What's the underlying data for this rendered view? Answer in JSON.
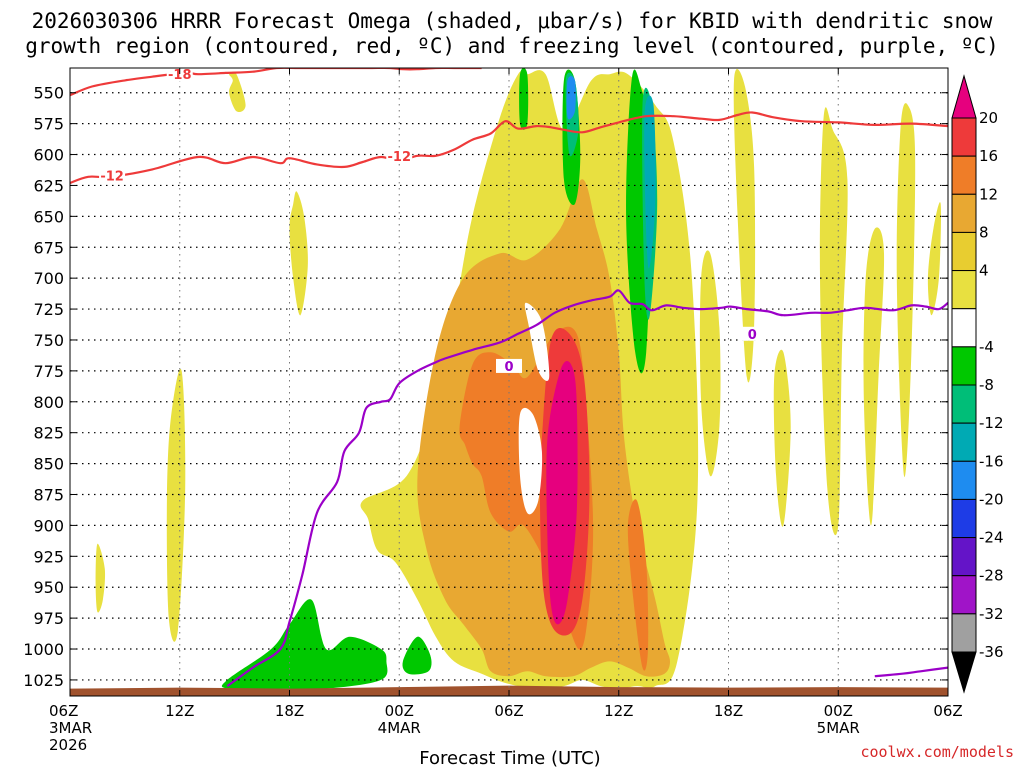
{
  "chart_data": {
    "type": "time-height contour plot",
    "title_lines": [
      "2026030306 HRRR Forecast Omega (shaded, μbar/s) for KBID with dendritic snow",
      "growth region (contoured, red, ºC) and freezing level (contoured, purple, ºC)"
    ],
    "xlabel": "Forecast Time (UTC)",
    "credit": "coolwx.com/models",
    "x_ticks": [
      {
        "hour": 0,
        "lines": [
          "06Z",
          "3MAR",
          "2026"
        ]
      },
      {
        "hour": 6,
        "lines": [
          "12Z"
        ]
      },
      {
        "hour": 12,
        "lines": [
          "18Z"
        ]
      },
      {
        "hour": 18,
        "lines": [
          "00Z",
          "4MAR"
        ]
      },
      {
        "hour": 24,
        "lines": [
          "06Z"
        ]
      },
      {
        "hour": 30,
        "lines": [
          "12Z"
        ]
      },
      {
        "hour": 36,
        "lines": [
          "18Z"
        ]
      },
      {
        "hour": 42,
        "lines": [
          "00Z",
          "5MAR"
        ]
      },
      {
        "hour": 48,
        "lines": [
          "06Z"
        ]
      }
    ],
    "xlim_hours": [
      0,
      48
    ],
    "y_ticks": [
      "550",
      "575",
      "600",
      "625",
      "650",
      "675",
      "700",
      "725",
      "750",
      "775",
      "800",
      "825",
      "850",
      "875",
      "900",
      "925",
      "950",
      "975",
      "1000",
      "1025"
    ],
    "ylim_hpa": [
      530,
      1038
    ],
    "colorbar": {
      "tick_labels": [
        "20",
        "16",
        "12",
        "8",
        "4",
        "-4",
        "-8",
        "-12",
        "-16",
        "-20",
        "-24",
        "-28",
        "-32",
        "-36"
      ],
      "colors": [
        "#e6007e",
        "#ee3a3a",
        "#ef7d28",
        "#e8a832",
        "#e8cd30",
        "#e8e040",
        "#ffffff",
        "#00c800",
        "#00be78",
        "#00aab4",
        "#1e8cf0",
        "#1e3ce6",
        "#6414c8",
        "#a014c8",
        "#a0a0a0",
        "#000000"
      ]
    },
    "omega_regions": [
      {
        "level": "4",
        "color": "#e8e040",
        "t": [
          12.4,
          12.8,
          13.0,
          12.6,
          12.2,
          12.0,
          12.2
        ],
        "p": [
          630,
          650,
          690,
          730,
          700,
          660,
          640
        ]
      },
      {
        "level": "4",
        "color": "#e8e040",
        "t": [
          1.5,
          1.9,
          1.8,
          1.5,
          1.4
        ],
        "p": [
          915,
          935,
          960,
          970,
          945
        ]
      },
      {
        "level": "4",
        "color": "#e8e040",
        "t": [
          5.5,
          6.1,
          6.3,
          5.9,
          5.4,
          5.3
        ],
        "p": [
          815,
          775,
          870,
          985,
          975,
          880
        ]
      },
      {
        "level": "4",
        "color": "#e8e040",
        "t": [
          8.7,
          9.1,
          9.6,
          9.1,
          8.7,
          8.9
        ],
        "p": [
          535,
          535,
          560,
          565,
          550,
          540
        ]
      },
      {
        "level": "4",
        "color": "#e8e040",
        "t": [
          16.0,
          18.4,
          20.0,
          21.0,
          22.0,
          23.5,
          24.5,
          25.0,
          26.0,
          27.0,
          28.5,
          29.5,
          30.5,
          32.0,
          33.0,
          34.0,
          34.3,
          33.2,
          32.0,
          31.0,
          30.0,
          29.0,
          28.0,
          27.0,
          25.5,
          24.5,
          23.5,
          22.5,
          21.0,
          20.0,
          19.0,
          17.8,
          16.8,
          16.3
        ],
        "p": [
          880,
          860,
          800,
          730,
          650,
          570,
          535,
          535,
          535,
          580,
          540,
          535,
          535,
          560,
          590,
          700,
          880,
          1010,
          1030,
          1030,
          1032,
          1030,
          1025,
          1030,
          1032,
          1030,
          1026,
          1020,
          1010,
          990,
          960,
          930,
          920,
          895
        ]
      },
      {
        "level": "4",
        "color": "#e8e040",
        "t": [
          34.5,
          35.0,
          35.5,
          35.5,
          35.0,
          34.5
        ],
        "p": [
          700,
          680,
          740,
          820,
          860,
          800
        ]
      },
      {
        "level": "4",
        "color": "#e8e040",
        "t": [
          36.3,
          36.9,
          37.4,
          37.4,
          37.0,
          36.5
        ],
        "p": [
          540,
          545,
          610,
          740,
          780,
          650
        ]
      },
      {
        "level": "4",
        "color": "#e8e040",
        "t": [
          38.5,
          39.0,
          39.4,
          39.0,
          38.6
        ],
        "p": [
          780,
          760,
          820,
          900,
          860
        ]
      },
      {
        "level": "4",
        "color": "#e8e040",
        "t": [
          41.2,
          41.7,
          42.5,
          42.2,
          42.0,
          41.4,
          41.0
        ],
        "p": [
          570,
          580,
          620,
          760,
          900,
          870,
          700
        ]
      },
      {
        "level": "4",
        "color": "#e8e040",
        "t": [
          43.5,
          44.0,
          44.5,
          44.2,
          43.8,
          43.4
        ],
        "p": [
          700,
          660,
          680,
          780,
          900,
          800
        ]
      },
      {
        "level": "4",
        "color": "#e8e040",
        "t": [
          45.4,
          45.8,
          46.2,
          46.0,
          45.6,
          45.2
        ],
        "p": [
          580,
          560,
          600,
          760,
          860,
          700
        ]
      },
      {
        "level": "4",
        "color": "#e8e040",
        "t": [
          47.2,
          47.6,
          47.5,
          47.1,
          46.9
        ],
        "p": [
          660,
          640,
          700,
          730,
          700
        ]
      },
      {
        "level": "8",
        "color": "#e8a832",
        "t": [
          19.0,
          20.0,
          21.5,
          23.5,
          25.0,
          26.8,
          28.0,
          28.8,
          29.5,
          30.0,
          30.3,
          31.0,
          32.0,
          32.5,
          32.8,
          32.5,
          31.5,
          30.5,
          29.5,
          28.5,
          27.5,
          26.0,
          25.0,
          24.0,
          23.0,
          22.5,
          21.5,
          20.5,
          19.5
        ],
        "p": [
          860,
          760,
          700,
          680,
          685,
          660,
          620,
          660,
          700,
          760,
          830,
          900,
          960,
          995,
          1010,
          1020,
          1022,
          1015,
          1010,
          1015,
          1022,
          1022,
          1018,
          1022,
          1018,
          1000,
          980,
          960,
          920
        ]
      },
      {
        "level": "12",
        "color": "#ef7d28",
        "t": [
          21.3,
          22.0,
          23.0,
          24.2,
          25.0,
          26.5,
          27.7,
          28.2,
          28.6,
          28.3,
          27.8,
          26.8,
          26.0,
          24.8,
          24.0,
          23.0,
          22.5,
          22.0,
          21.6
        ],
        "p": [
          820,
          770,
          760,
          770,
          780,
          745,
          745,
          800,
          900,
          975,
          1000,
          960,
          930,
          900,
          905,
          890,
          860,
          850,
          835
        ]
      },
      {
        "level": "12",
        "color": "#ef7d28",
        "t": [
          30.5,
          31.0,
          31.5,
          31.6,
          31.3,
          30.8
        ],
        "p": [
          900,
          880,
          930,
          1000,
          1015,
          960
        ]
      },
      {
        "level": "16",
        "color": "#ee3a3a",
        "t": [
          25.8,
          26.3,
          27.3,
          28.1,
          28.4,
          28.1,
          27.5,
          26.5,
          25.9,
          25.7
        ],
        "p": [
          830,
          750,
          745,
          780,
          870,
          950,
          985,
          985,
          955,
          890
        ]
      },
      {
        "level": "20",
        "color": "#e6007e",
        "t": [
          26.1,
          26.8,
          27.4,
          27.7,
          27.7,
          27.2,
          26.7,
          26.3,
          26.1
        ],
        "p": [
          830,
          775,
          770,
          800,
          890,
          960,
          980,
          965,
          910
        ]
      },
      {
        "level": "0",
        "color": "#ffffff",
        "t": [
          24.9,
          25.8,
          26.2,
          25.6,
          25.1
        ],
        "p": [
          720,
          735,
          780,
          775,
          740
        ]
      },
      {
        "level": "0",
        "color": "#ffffff",
        "t": [
          24.6,
          25.3,
          25.8,
          25.6,
          25.0,
          24.6
        ],
        "p": [
          810,
          810,
          840,
          880,
          890,
          860
        ]
      },
      {
        "level": "-4",
        "color": "#00c800",
        "t": [
          27.0,
          27.6,
          27.9,
          27.6,
          27.0
        ],
        "p": [
          540,
          540,
          600,
          640,
          620
        ]
      },
      {
        "level": "-4",
        "color": "#00c800",
        "t": [
          30.7,
          31.2,
          31.8,
          31.5,
          30.9,
          30.4
        ],
        "p": [
          540,
          545,
          600,
          760,
          760,
          650
        ]
      },
      {
        "level": "-4",
        "color": "#00c800",
        "t": [
          24.6,
          25.0,
          25.0,
          24.6
        ],
        "p": [
          535,
          535,
          575,
          575
        ]
      },
      {
        "level": "-4",
        "color": "#00c800",
        "t": [
          8.6,
          11.0,
          12.0,
          13.2,
          14.0,
          15.3,
          17.0,
          17.3,
          17.0,
          14.0,
          11.0,
          8.6
        ],
        "p": [
          1025,
          1000,
          980,
          960,
          1000,
          990,
          1000,
          1010,
          1025,
          1032,
          1032,
          1032
        ]
      },
      {
        "level": "-4",
        "color": "#00c800",
        "t": [
          18.2,
          19.0,
          19.7,
          19.6,
          18.5
        ],
        "p": [
          1010,
          990,
          1005,
          1018,
          1020
        ]
      },
      {
        "level": "-8",
        "color": "#00be78",
        "t": [
          31.3,
          31.8,
          32.1,
          31.7,
          31.4
        ],
        "p": [
          560,
          560,
          640,
          730,
          700
        ]
      },
      {
        "level": "-12",
        "color": "#00aab4",
        "t": [
          31.4,
          31.9,
          32.0,
          31.6
        ],
        "p": [
          570,
          560,
          640,
          690
        ]
      },
      {
        "level": "-8",
        "color": "#00be78",
        "t": [
          27.1,
          27.6,
          27.8,
          27.3
        ],
        "p": [
          540,
          540,
          580,
          600
        ]
      },
      {
        "level": "-16",
        "color": "#1e8cf0",
        "t": [
          27.2,
          27.6,
          27.6,
          27.2
        ],
        "p": [
          540,
          540,
          565,
          570
        ]
      }
    ],
    "dgz_contours": [
      {
        "label": "-18",
        "t": [
          0.0,
          1.2,
          3.0,
          4.5,
          6.3,
          7.0,
          8.5,
          10.0,
          11.3,
          12.5,
          14.0,
          15.5,
          16.5,
          17.5,
          18.2,
          19.0,
          20.0,
          21.0,
          22.0,
          22.5
        ],
        "p": [
          552,
          545,
          540,
          537,
          534,
          535,
          534,
          533,
          530,
          530,
          530,
          530,
          530,
          530,
          531,
          531,
          530,
          530,
          530,
          530
        ]
      },
      {
        "label": "-12",
        "t": [
          0.0,
          1.0,
          2.2,
          4.5,
          7.0,
          8.5,
          10.0,
          11.5,
          12.0,
          13.5,
          15.0,
          16.0,
          17.0,
          18.0,
          19.0,
          20.0,
          21.0,
          22.0,
          23.0,
          23.8,
          24.5,
          25.5,
          26.3,
          27.0,
          28.0,
          29.0,
          30.0,
          31.5,
          33.0,
          34.5,
          35.5,
          36.5,
          37.3,
          38.5,
          40.0,
          42.0,
          44.0,
          46.0,
          48.0
        ],
        "p": [
          623,
          618,
          618,
          612,
          602,
          607,
          602,
          607,
          603,
          608,
          610,
          606,
          602,
          605,
          601,
          601,
          596,
          588,
          583,
          573,
          579,
          577,
          578,
          580,
          582,
          578,
          574,
          569,
          569,
          571,
          572,
          568,
          566,
          570,
          573,
          574,
          576,
          575,
          577
        ]
      }
    ],
    "freezing_level": [
      {
        "label": "0",
        "t": [
          8.6,
          10.0,
          11.5,
          12.0,
          12.7,
          13.5,
          14.6,
          15.0,
          15.8,
          16.2,
          17.0,
          17.5,
          18.0,
          19.0,
          20.0,
          20.5,
          22.0,
          23.5,
          24.5,
          25.5,
          26.5,
          27.5,
          28.5,
          29.5,
          30.0,
          30.6,
          31.3,
          31.8,
          32.6,
          33.5,
          34.5,
          35.6,
          36.1,
          37.0,
          38.2,
          39.0,
          40.5,
          41.5,
          42.5,
          43.5,
          45.0,
          46.0,
          46.8,
          47.5,
          48.0
        ],
        "p": [
          1030,
          1015,
          1000,
          978,
          940,
          890,
          865,
          840,
          825,
          805,
          800,
          798,
          785,
          775,
          768,
          765,
          758,
          752,
          745,
          738,
          728,
          722,
          718,
          715,
          710,
          720,
          721,
          726,
          722,
          724,
          725,
          724,
          723,
          725,
          727,
          730,
          728,
          728,
          726,
          724,
          726,
          722,
          723,
          725,
          720
        ]
      },
      {
        "label": "",
        "t": [
          44.0,
          45.5,
          46.5,
          48.0
        ],
        "p": [
          1022,
          1020,
          1018,
          1015
        ]
      }
    ],
    "terrain_hpa": 1032
  }
}
